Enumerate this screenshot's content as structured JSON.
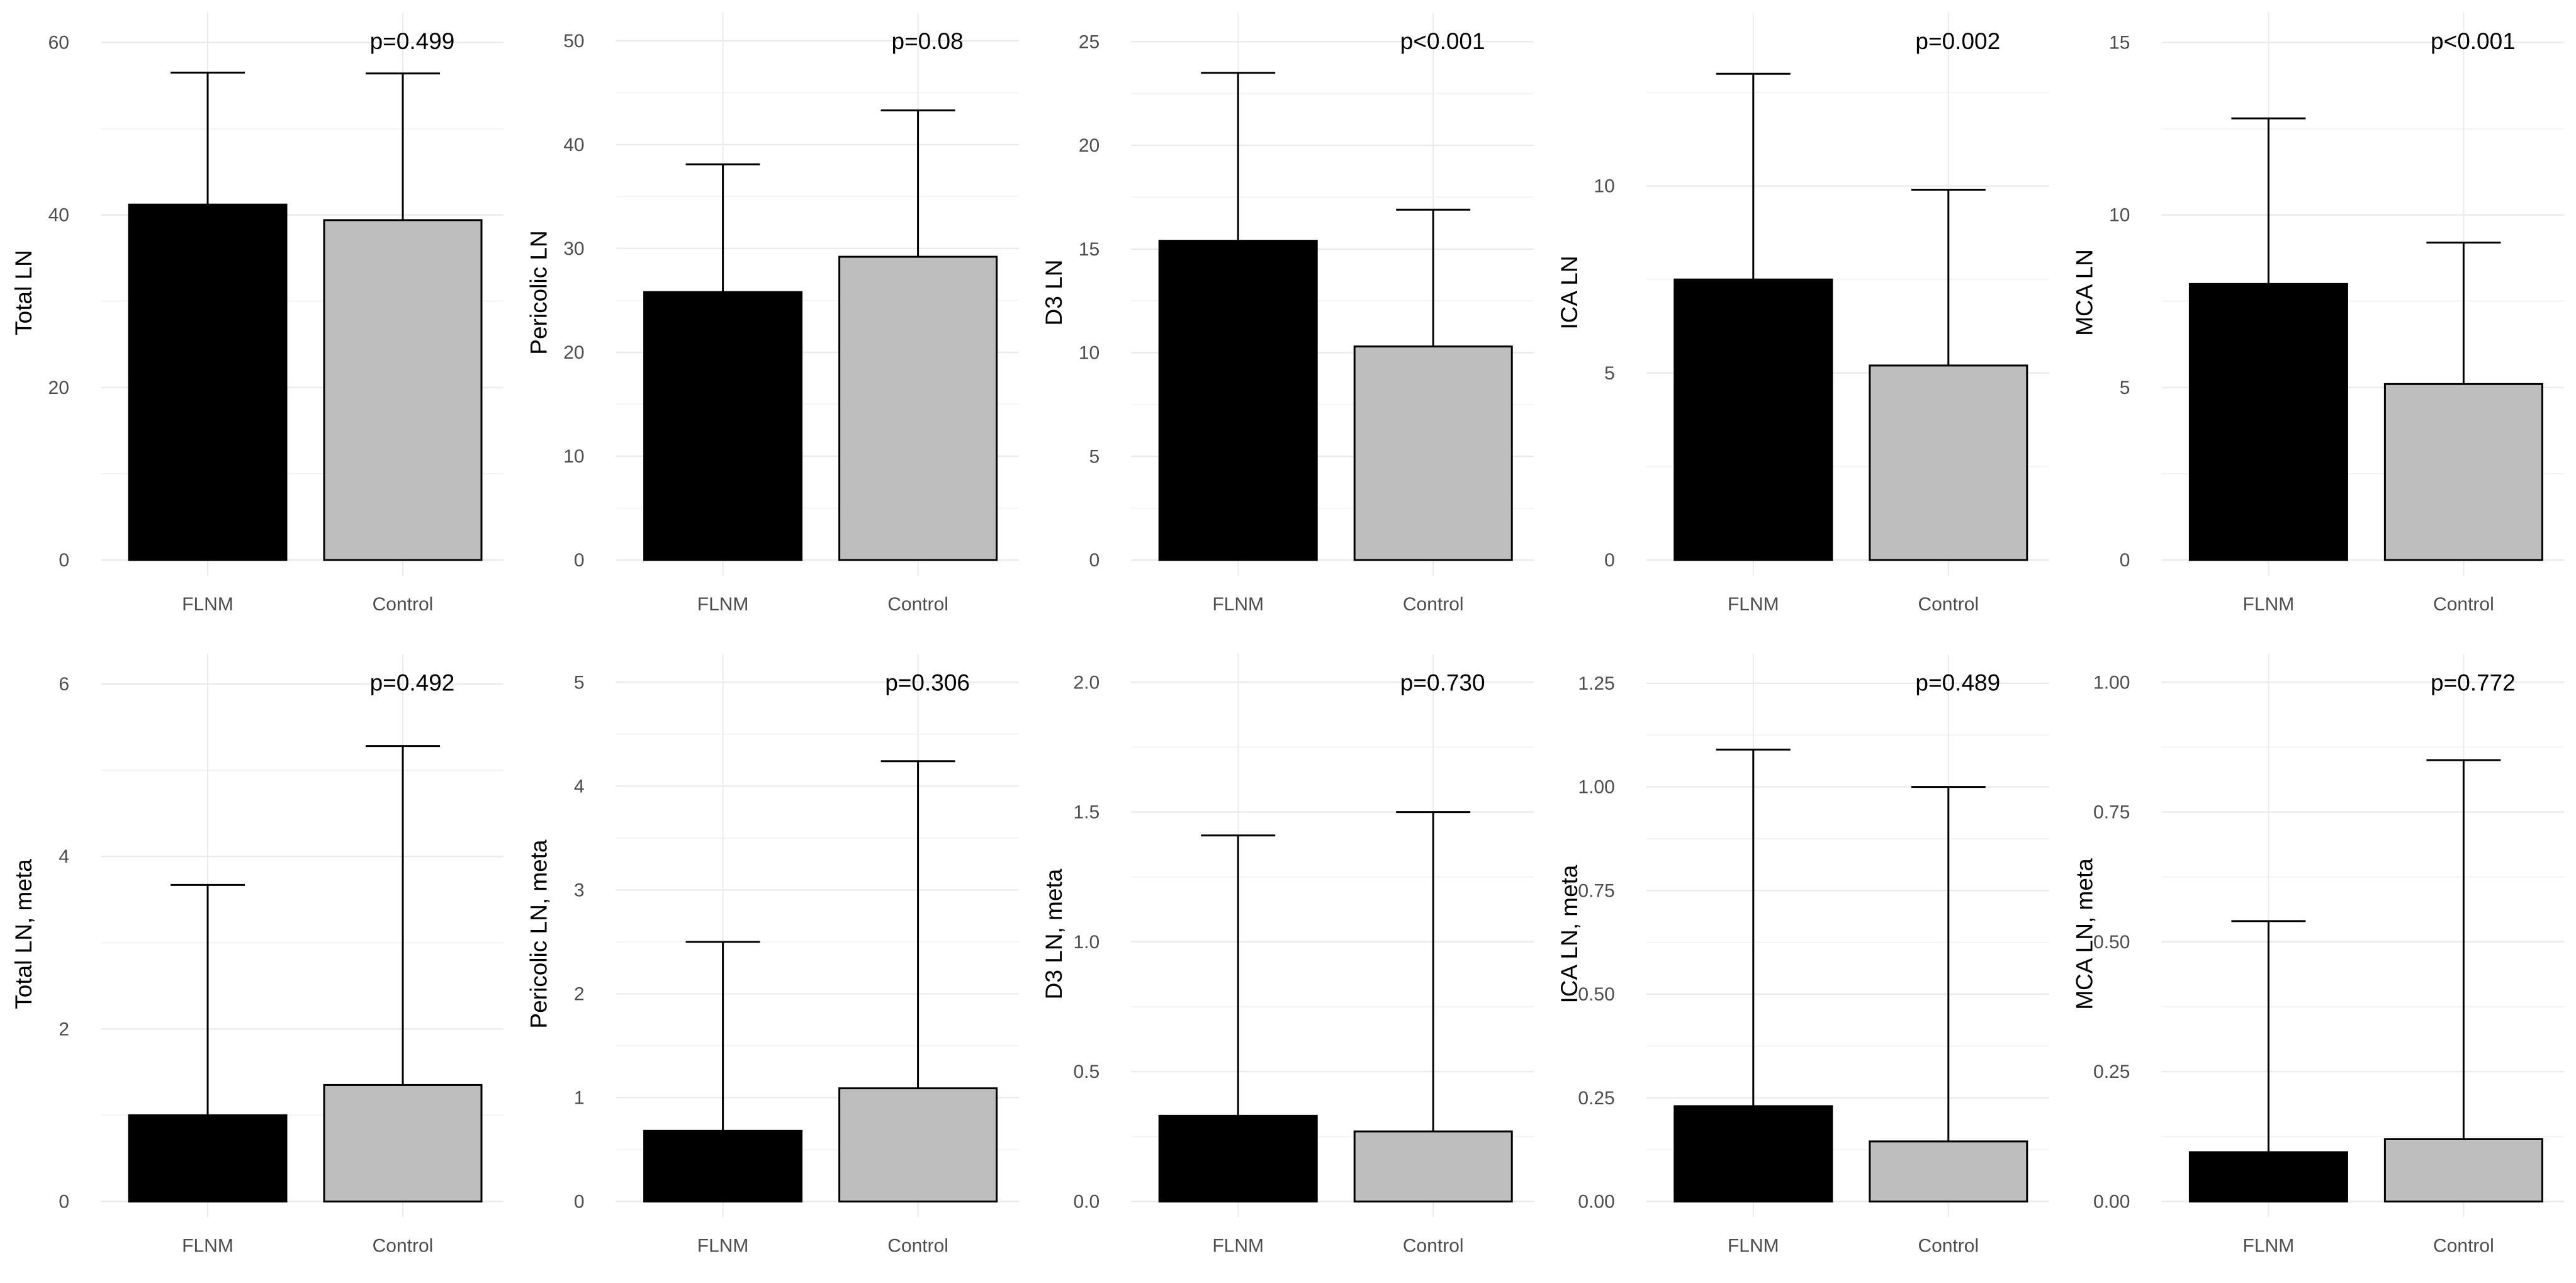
{
  "figure": {
    "background": "#ffffff"
  },
  "styles": {
    "bar_colors": [
      "#000000",
      "#bebebe"
    ],
    "grid_major": "#ebebeb",
    "grid_minor": "#f4f4f4",
    "text_color": "#000000",
    "tick_color": "#4d4d4d"
  },
  "chart_data": [
    {
      "type": "bar",
      "title": "",
      "xlabel": "",
      "ylabel": "Total LN",
      "annotation": "p=0.499",
      "categories": [
        "FLNM",
        "Control"
      ],
      "values": [
        41.2,
        39.4
      ],
      "error_upper": [
        56.5,
        56.4
      ],
      "ylim": [
        0,
        62
      ],
      "yticks": [
        0,
        20,
        40,
        60
      ],
      "ytick_labels": [
        "0",
        "20",
        "40",
        "60"
      ],
      "grid": true
    },
    {
      "type": "bar",
      "title": "",
      "xlabel": "",
      "ylabel": "Pericolic LN",
      "annotation": "p=0.08",
      "categories": [
        "FLNM",
        "Control"
      ],
      "values": [
        25.8,
        29.2
      ],
      "error_upper": [
        38.1,
        43.3
      ],
      "ylim": [
        0,
        51.5
      ],
      "yticks": [
        0,
        10,
        20,
        30,
        40,
        50
      ],
      "ytick_labels": [
        "0",
        "10",
        "20",
        "30",
        "40",
        "50"
      ],
      "grid": true
    },
    {
      "type": "bar",
      "title": "",
      "xlabel": "",
      "ylabel": "D3 LN",
      "annotation": "p<0.001",
      "categories": [
        "FLNM",
        "Control"
      ],
      "values": [
        15.4,
        10.3
      ],
      "error_upper": [
        23.5,
        16.9
      ],
      "ylim": [
        0,
        25.8
      ],
      "yticks": [
        0,
        5,
        10,
        15,
        20,
        25
      ],
      "ytick_labels": [
        "0",
        "5",
        "10",
        "15",
        "20",
        "25"
      ],
      "grid": true
    },
    {
      "type": "bar",
      "title": "",
      "xlabel": "",
      "ylabel": "ICA LN",
      "annotation": "p=0.002",
      "categories": [
        "FLNM",
        "Control"
      ],
      "values": [
        7.5,
        5.2
      ],
      "error_upper": [
        13.0,
        9.9
      ],
      "ylim": [
        0,
        14.3
      ],
      "yticks": [
        0,
        5,
        10
      ],
      "ytick_labels": [
        "0",
        "5",
        "10"
      ],
      "grid": true
    },
    {
      "type": "bar",
      "title": "",
      "xlabel": "",
      "ylabel": "MCA LN",
      "annotation": "p<0.001",
      "categories": [
        "FLNM",
        "Control"
      ],
      "values": [
        8.0,
        5.1
      ],
      "error_upper": [
        12.8,
        9.2
      ],
      "ylim": [
        0,
        15.5
      ],
      "yticks": [
        0,
        5,
        10,
        15
      ],
      "ytick_labels": [
        "0",
        "5",
        "10",
        "15"
      ],
      "grid": true
    },
    {
      "type": "bar",
      "title": "",
      "xlabel": "",
      "ylabel": "Total LN, meta",
      "annotation": "p=0.492",
      "categories": [
        "FLNM",
        "Control"
      ],
      "values": [
        1.0,
        1.35
      ],
      "error_upper": [
        3.67,
        5.28
      ],
      "ylim": [
        0,
        6.2
      ],
      "yticks": [
        0,
        2,
        4,
        6
      ],
      "ytick_labels": [
        "0",
        "2",
        "4",
        "6"
      ],
      "grid": true
    },
    {
      "type": "bar",
      "title": "",
      "xlabel": "",
      "ylabel": "Pericolic LN, meta",
      "annotation": "p=0.306",
      "categories": [
        "FLNM",
        "Control"
      ],
      "values": [
        0.68,
        1.09
      ],
      "error_upper": [
        2.5,
        4.24
      ],
      "ylim": [
        0,
        5.15
      ],
      "yticks": [
        0,
        1,
        2,
        3,
        4,
        5
      ],
      "ytick_labels": [
        "0",
        "1",
        "2",
        "3",
        "4",
        "5"
      ],
      "grid": true
    },
    {
      "type": "bar",
      "title": "",
      "xlabel": "",
      "ylabel": "D3 LN, meta",
      "annotation": "p=0.730",
      "categories": [
        "FLNM",
        "Control"
      ],
      "values": [
        0.33,
        0.27
      ],
      "error_upper": [
        1.41,
        1.5
      ],
      "ylim": [
        0,
        2.06
      ],
      "yticks": [
        0,
        0.5,
        1.0,
        1.5,
        2.0
      ],
      "ytick_labels": [
        "0.0",
        "0.5",
        "1.0",
        "1.5",
        "2.0"
      ],
      "grid": true
    },
    {
      "type": "bar",
      "title": "",
      "xlabel": "",
      "ylabel": "ICA LN, meta",
      "annotation": "p=0.489",
      "categories": [
        "FLNM",
        "Control"
      ],
      "values": [
        0.23,
        0.145
      ],
      "error_upper": [
        1.09,
        1.0
      ],
      "ylim": [
        0,
        1.29
      ],
      "yticks": [
        0,
        0.25,
        0.5,
        0.75,
        1.0,
        1.25
      ],
      "ytick_labels": [
        "0.00",
        "0.25",
        "0.50",
        "0.75",
        "1.00",
        "1.25"
      ],
      "grid": true
    },
    {
      "type": "bar",
      "title": "",
      "xlabel": "",
      "ylabel": "MCA LN, meta",
      "annotation": "p=0.772",
      "categories": [
        "FLNM",
        "Control"
      ],
      "values": [
        0.095,
        0.12
      ],
      "error_upper": [
        0.54,
        0.85
      ],
      "ylim": [
        0,
        1.03
      ],
      "yticks": [
        0,
        0.25,
        0.5,
        0.75,
        1.0
      ],
      "ytick_labels": [
        "0.00",
        "0.25",
        "0.50",
        "0.75",
        "1.00"
      ],
      "grid": true
    }
  ]
}
